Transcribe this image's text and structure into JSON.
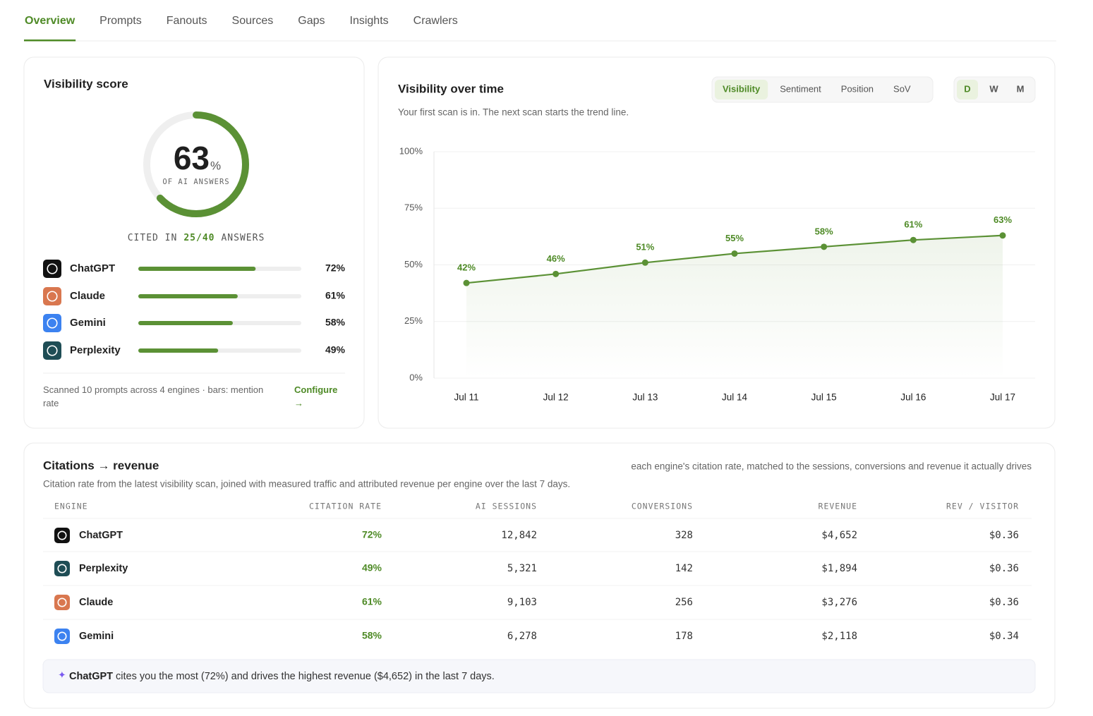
{
  "tabs": [
    "Overview",
    "Prompts",
    "Fanouts",
    "Sources",
    "Gaps",
    "Insights",
    "Crawlers"
  ],
  "visibility_score": {
    "title": "Visibility score",
    "value": 63,
    "unit": "%",
    "caption": "OF AI ANSWERS",
    "cited_prefix": "CITED IN",
    "cited": "25/40",
    "cited_suffix": "ANSWERS",
    "color": "#5b9135",
    "engines": [
      {
        "name": "ChatGPT",
        "value": 72,
        "label": "72%",
        "icon_color": "#111111"
      },
      {
        "name": "Claude",
        "value": 61,
        "label": "61%",
        "icon_color": "#d9774f"
      },
      {
        "name": "Gemini",
        "value": 58,
        "label": "58%",
        "icon_color": "#3c82f0"
      },
      {
        "name": "Perplexity",
        "value": 49,
        "label": "49%",
        "icon_color": "#1e4d55"
      }
    ],
    "footer": "Scanned 10 prompts across 4 engines · bars: mention rate",
    "configure": "Configure →"
  },
  "chart_data": {
    "type": "line",
    "title": "Visibility over time",
    "subtitle": "Your first scan is in. The next scan starts the trend line.",
    "toggles": [
      "Visibility",
      "Sentiment",
      "Position",
      "SoV"
    ],
    "periods": [
      "D",
      "W",
      "M"
    ],
    "categories": [
      "Jul 11",
      "Jul 12",
      "Jul 13",
      "Jul 14",
      "Jul 15",
      "Jul 16",
      "Jul 17"
    ],
    "series": [
      {
        "color": "#5b9135",
        "values": [
          42,
          46,
          51,
          55,
          58,
          61,
          63
        ],
        "value_labels": [
          "42%",
          "46%",
          "51%",
          "55%",
          "58%",
          "61%",
          "63%"
        ]
      }
    ],
    "ylim": [
      0,
      100
    ],
    "yticks": [
      {
        "value": 0,
        "label": "0%"
      },
      {
        "value": 25,
        "label": "25%"
      },
      {
        "value": 50,
        "label": "50%"
      },
      {
        "value": 75,
        "label": "75%"
      },
      {
        "value": 100,
        "label": "100%"
      }
    ],
    "grid": true
  },
  "citations": {
    "title": "Citations → revenue",
    "note": "each engine's citation rate, matched to the sessions, conversions and revenue it actually drives",
    "subtitle": "Citation rate from the latest visibility scan, joined with measured traffic and attributed revenue per engine over the last 7 days.",
    "columns": [
      "ENGINE",
      "CITATION RATE",
      "AI SESSIONS",
      "CONVERSIONS",
      "REVENUE",
      "REV / VISITOR"
    ],
    "rows": [
      {
        "engine": "ChatGPT",
        "icon_color": "#111111",
        "cells": [
          "72%",
          "12,842",
          "328",
          "$4,652",
          "$0.36"
        ]
      },
      {
        "engine": "Perplexity",
        "icon_color": "#1e4d55",
        "cells": [
          "49%",
          "5,321",
          "142",
          "$1,894",
          "$0.36"
        ]
      },
      {
        "engine": "Claude",
        "icon_color": "#d9774f",
        "cells": [
          "61%",
          "9,103",
          "256",
          "$3,276",
          "$0.36"
        ]
      },
      {
        "engine": "Gemini",
        "icon_color": "#3c82f0",
        "cells": [
          "58%",
          "6,278",
          "178",
          "$2,118",
          "$0.34"
        ]
      }
    ],
    "insight": {
      "highlight": "ChatGPT",
      "text": "cites you the most (72%) and drives the highest revenue ($4,652) in the last 7 days."
    }
  }
}
